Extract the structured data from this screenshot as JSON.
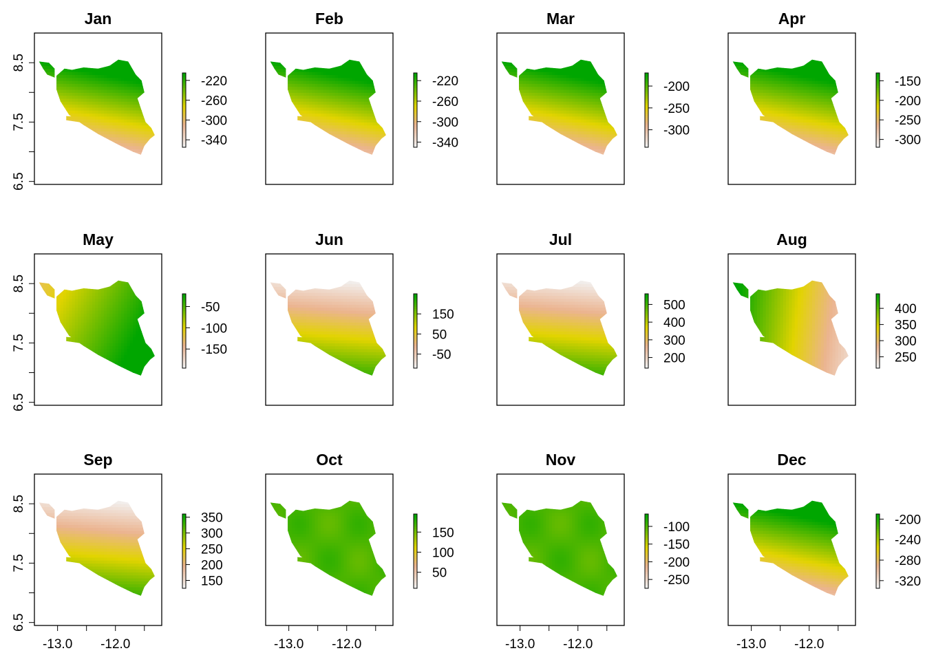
{
  "chart_data": {
    "type": "heatmap",
    "layout": "3x4 small multiples",
    "shared_axes": {
      "x_ticks": [
        "-13.0",
        "-12.0"
      ],
      "y_ticks": [
        "6.5",
        "7.5",
        "8.5"
      ],
      "x_tick_values": [
        -13.0,
        -12.5,
        -12.0,
        -11.5
      ],
      "y_tick_values": [
        6.5,
        7.0,
        7.5,
        8.0,
        8.5
      ],
      "xlim": [
        -13.4,
        -11.2
      ],
      "ylim": [
        6.45,
        9.0
      ]
    },
    "colors": {
      "low": "#f2f2f2",
      "low_mid": "#ebb490",
      "mid": "#e2d400",
      "high": "#00a600"
    },
    "panels": [
      {
        "title": "Jan",
        "legend_ticks": [
          -220,
          -260,
          -300,
          -340
        ],
        "range": [
          -355,
          -205
        ],
        "pattern": "sw_low"
      },
      {
        "title": "Feb",
        "legend_ticks": [
          -220,
          -260,
          -300,
          -340
        ],
        "range": [
          -350,
          -205
        ],
        "pattern": "sw_low"
      },
      {
        "title": "Mar",
        "legend_ticks": [
          -200,
          -250,
          -300
        ],
        "range": [
          -340,
          -170
        ],
        "pattern": "sw_low"
      },
      {
        "title": "Apr",
        "legend_ticks": [
          -150,
          -200,
          -250,
          -300
        ],
        "range": [
          -320,
          -130
        ],
        "pattern": "sw_low"
      },
      {
        "title": "May",
        "legend_ticks": [
          -50,
          -100,
          -150
        ],
        "range": [
          -195,
          -20
        ],
        "pattern": "nw_low"
      },
      {
        "title": "Jun",
        "legend_ticks": [
          150,
          50,
          -50
        ],
        "range": [
          -120,
          250
        ],
        "pattern": "north_low"
      },
      {
        "title": "Jul",
        "legend_ticks": [
          500,
          400,
          300,
          200
        ],
        "range": [
          140,
          560
        ],
        "pattern": "north_low"
      },
      {
        "title": "Aug",
        "legend_ticks": [
          400,
          350,
          300,
          250
        ],
        "range": [
          215,
          445
        ],
        "pattern": "east_low"
      },
      {
        "title": "Sep",
        "legend_ticks": [
          350,
          300,
          250,
          200,
          150
        ],
        "range": [
          125,
          360
        ],
        "pattern": "north_low"
      },
      {
        "title": "Oct",
        "legend_ticks": [
          150,
          100,
          50
        ],
        "range": [
          10,
          195
        ],
        "pattern": "uniform_high"
      },
      {
        "title": "Nov",
        "legend_ticks": [
          -100,
          -150,
          -200,
          -250
        ],
        "range": [
          -275,
          -65
        ],
        "pattern": "uniform_high"
      },
      {
        "title": "Dec",
        "legend_ticks": [
          -200,
          -240,
          -280,
          -320
        ],
        "range": [
          -335,
          -190
        ],
        "pattern": "sw_low"
      }
    ]
  }
}
